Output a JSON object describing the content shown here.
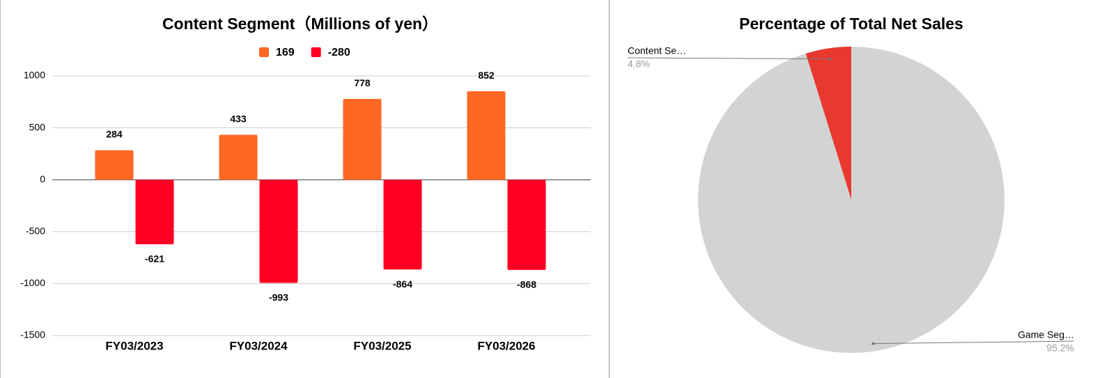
{
  "chart_data": [
    {
      "type": "bar",
      "title": "Content Segment（Millions of yen）",
      "categories": [
        "FY03/2023",
        "FY03/2024",
        "FY03/2025",
        "FY03/2026"
      ],
      "series": [
        {
          "name": "169",
          "color": "#ff6723",
          "values": [
            284,
            433,
            778,
            852
          ]
        },
        {
          "name": "-280",
          "color": "#ff0022",
          "values": [
            -621,
            -993,
            -864,
            -868
          ]
        }
      ],
      "ylim": [
        -1500,
        1000
      ],
      "yticks": [
        -1500,
        -1000,
        -500,
        0,
        500,
        1000
      ],
      "grid": true,
      "legend": "top"
    },
    {
      "type": "pie",
      "title": "Percentage of Total Net Sales",
      "labels": [
        "Content Se…",
        "Game Seg…"
      ],
      "values": [
        4.8,
        95.2
      ],
      "value_labels": [
        "4.8%",
        "95.2%"
      ],
      "colors": [
        "#e8392f",
        "#d3d3d3"
      ]
    }
  ]
}
